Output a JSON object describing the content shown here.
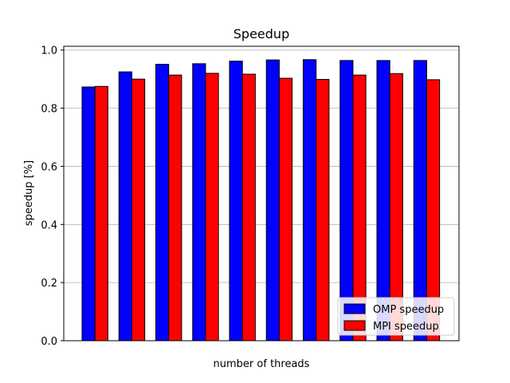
{
  "chart_data": {
    "type": "bar",
    "title": "Speedup",
    "xlabel": "number of threads",
    "ylabel": "speedup [%]",
    "ylim": [
      0,
      1.013
    ],
    "yticks": [
      "0.0",
      "0.2",
      "0.4",
      "0.6",
      "0.8",
      "1.0"
    ],
    "grid": "y",
    "legend_position": "lower-right",
    "categories": [
      "",
      "",
      "",
      "",
      "",
      "",
      "",
      "",
      "",
      ""
    ],
    "series": [
      {
        "name": "OMP speedup",
        "color": "#0000ff",
        "values": [
          0.873,
          0.925,
          0.951,
          0.953,
          0.962,
          0.966,
          0.967,
          0.964,
          0.964,
          0.964
        ]
      },
      {
        "name": "MPI speedup",
        "color": "#ff0000",
        "values": [
          0.875,
          0.9,
          0.914,
          0.92,
          0.917,
          0.903,
          0.899,
          0.914,
          0.919,
          0.898
        ]
      }
    ]
  }
}
